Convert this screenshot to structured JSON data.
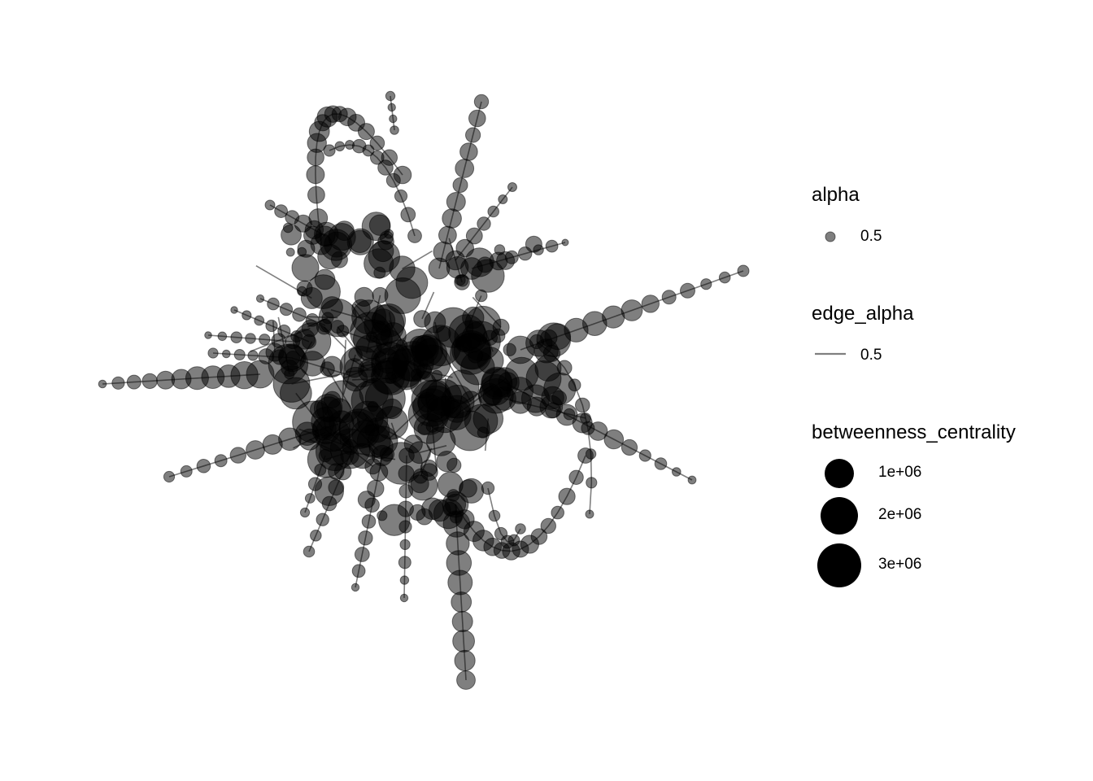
{
  "legend": {
    "alpha": {
      "title": "alpha",
      "label": "0.5"
    },
    "edge_alpha": {
      "title": "edge_alpha",
      "label": "0.5"
    },
    "betweenness": {
      "title": "betweenness_centrality",
      "items": [
        {
          "label": "1e+06",
          "value": 1000000
        },
        {
          "label": "2e+06",
          "value": 2000000
        },
        {
          "label": "3e+06",
          "value": 3000000
        }
      ]
    }
  },
  "style": {
    "node_color": "#000000",
    "node_alpha": 0.5,
    "edge_color": "#000000",
    "edge_alpha": 0.5
  }
}
